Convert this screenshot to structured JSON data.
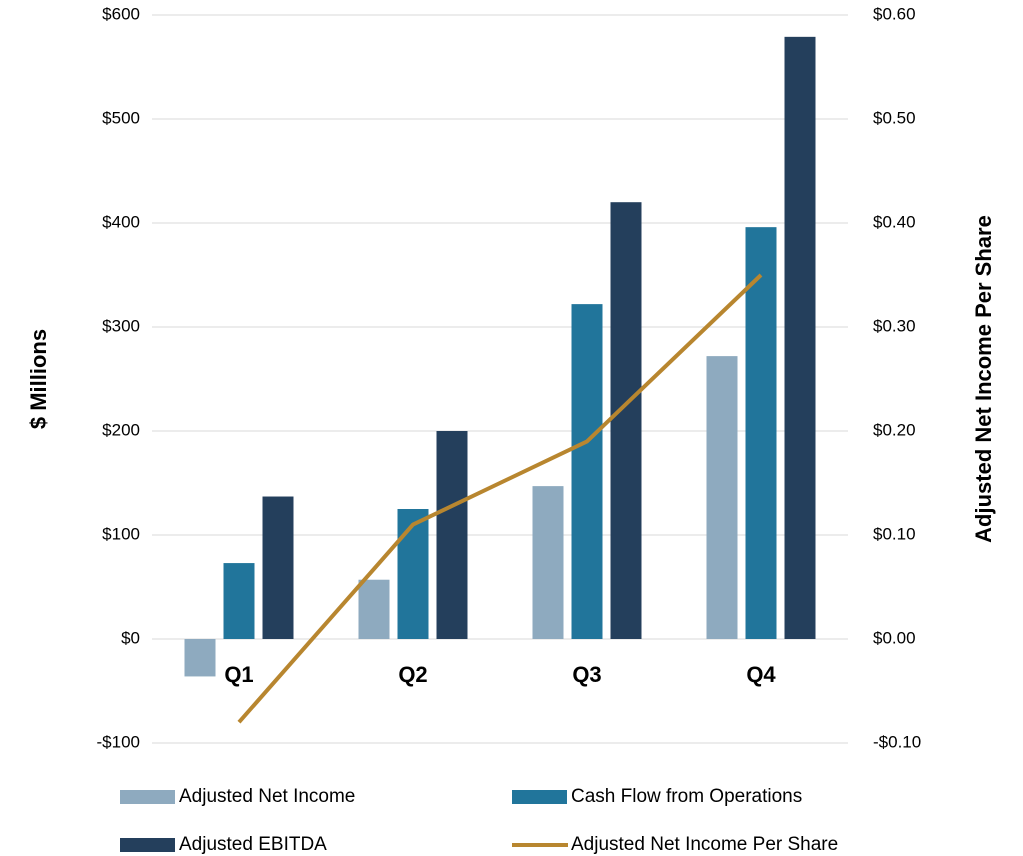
{
  "chart_data": {
    "type": "bar",
    "categories": [
      "Q1",
      "Q2",
      "Q3",
      "Q4"
    ],
    "series": [
      {
        "name": "Adjusted Net Income",
        "color": "#8eaabf",
        "values": [
          -36,
          57,
          147,
          272
        ]
      },
      {
        "name": "Cash Flow from Operations",
        "color": "#21759b",
        "values": [
          73,
          125,
          322,
          396
        ]
      },
      {
        "name": "Adjusted EBITDA",
        "color": "#243f5c",
        "values": [
          137,
          200,
          420,
          579
        ]
      },
      {
        "name": "Adjusted Net Income Per Share",
        "color": "#b8862f",
        "type": "line",
        "axis": "y2",
        "values": [
          -0.08,
          0.11,
          0.19,
          0.35
        ]
      }
    ],
    "ylabel": "$ Millions",
    "y2label": "Adjusted Net Income Per Share",
    "ylim": [
      -100,
      600
    ],
    "yticks": [
      {
        "value": -100,
        "label": "-$100"
      },
      {
        "value": 0,
        "label": "$0"
      },
      {
        "value": 100,
        "label": "$100"
      },
      {
        "value": 200,
        "label": "$200"
      },
      {
        "value": 300,
        "label": "$300"
      },
      {
        "value": 400,
        "label": "$400"
      },
      {
        "value": 500,
        "label": "$500"
      },
      {
        "value": 600,
        "label": "$600"
      }
    ],
    "y2lim": [
      -0.1,
      0.6
    ],
    "y2ticks": [
      {
        "value": -0.1,
        "label": "-$0.10"
      },
      {
        "value": 0,
        "label": "$0.00"
      },
      {
        "value": 0.1,
        "label": "$0.10"
      },
      {
        "value": 0.2,
        "label": "$0.20"
      },
      {
        "value": 0.3,
        "label": "$0.30"
      },
      {
        "value": 0.4,
        "label": "$0.40"
      },
      {
        "value": 0.5,
        "label": "$0.50"
      },
      {
        "value": 0.6,
        "label": "$0.60"
      }
    ],
    "grid": true,
    "legend": "bottom"
  }
}
